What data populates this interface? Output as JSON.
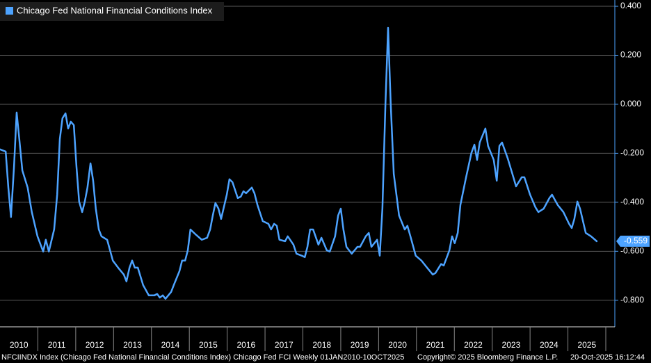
{
  "chart_data": {
    "type": "line",
    "series": [
      {
        "name": "Chicago Fed National Financial Conditions Index",
        "color": "#4da3ff",
        "values": [
          -0.184,
          -0.193,
          -0.34,
          -0.46,
          -0.255,
          -0.034,
          -0.142,
          -0.27,
          -0.34,
          -0.44,
          -0.539,
          -0.601,
          -0.553,
          -0.601,
          -0.511,
          -0.369,
          -0.142,
          -0.057,
          -0.037,
          -0.099,
          -0.071,
          -0.085,
          -0.255,
          -0.397,
          -0.44,
          -0.397,
          -0.34,
          -0.241,
          -0.312,
          -0.426,
          -0.511,
          -0.539,
          -0.553,
          -0.638,
          -0.667,
          -0.695,
          -0.723,
          -0.667,
          -0.638,
          -0.667,
          -0.667,
          -0.738,
          -0.78,
          -0.78,
          -0.774,
          -0.789,
          -0.78,
          -0.794,
          -0.766,
          -0.738,
          -0.681,
          -0.638,
          -0.638,
          -0.596,
          -0.511,
          -0.533,
          -0.553,
          -0.545,
          -0.511,
          -0.454,
          -0.403,
          -0.426,
          -0.468,
          -0.369,
          -0.306,
          -0.318,
          -0.383,
          -0.377,
          -0.355,
          -0.363,
          -0.34,
          -0.363,
          -0.411,
          -0.477,
          -0.488,
          -0.511,
          -0.488,
          -0.496,
          -0.553,
          -0.559,
          -0.539,
          -0.573,
          -0.61,
          -0.618,
          -0.624,
          -0.582,
          -0.511,
          -0.511,
          -0.573,
          -0.545,
          -0.596,
          -0.601,
          -0.539,
          -0.454,
          -0.426,
          -0.511,
          -0.582,
          -0.61,
          -0.582,
          -0.582,
          -0.539,
          -0.525,
          -0.582,
          -0.553,
          -0.618,
          -0.426,
          0.0,
          0.312,
          0.0,
          -0.284,
          -0.454,
          -0.511,
          -0.496,
          -0.539,
          -0.618,
          -0.638,
          -0.667,
          -0.695,
          -0.689,
          -0.652,
          -0.658,
          -0.596,
          -0.539,
          -0.567,
          -0.525,
          -0.411,
          -0.298,
          -0.199,
          -0.165,
          -0.227,
          -0.156,
          -0.099,
          -0.17,
          -0.227,
          -0.312,
          -0.17,
          -0.156,
          -0.221,
          -0.298,
          -0.335,
          -0.298,
          -0.298,
          -0.369,
          -0.42,
          -0.44,
          -0.426,
          -0.383,
          -0.369,
          -0.411,
          -0.44,
          -0.488,
          -0.505,
          -0.468,
          -0.397,
          -0.426,
          -0.525,
          -0.539,
          -0.559
        ]
      }
    ],
    "x": [
      2010.0,
      2010.15,
      2010.22,
      2010.29,
      2010.37,
      2010.44,
      2010.51,
      2010.59,
      2010.73,
      2010.84,
      2010.99,
      2011.14,
      2011.21,
      2011.29,
      2011.43,
      2011.51,
      2011.58,
      2011.65,
      2011.73,
      2011.8,
      2011.87,
      2011.95,
      2012.02,
      2012.09,
      2012.17,
      2012.24,
      2012.31,
      2012.39,
      2012.46,
      2012.53,
      2012.61,
      2012.68,
      2012.83,
      2012.98,
      2013.12,
      2013.27,
      2013.34,
      2013.42,
      2013.49,
      2013.56,
      2013.64,
      2013.78,
      2013.93,
      2014.08,
      2014.15,
      2014.22,
      2014.3,
      2014.37,
      2014.52,
      2014.59,
      2014.74,
      2014.81,
      2014.89,
      2014.96,
      2015.03,
      2015.18,
      2015.33,
      2015.47,
      2015.55,
      2015.62,
      2015.69,
      2015.77,
      2015.84,
      2015.99,
      2016.06,
      2016.14,
      2016.28,
      2016.36,
      2016.43,
      2016.5,
      2016.65,
      2016.72,
      2016.8,
      2016.94,
      2017.09,
      2017.16,
      2017.24,
      2017.31,
      2017.38,
      2017.53,
      2017.6,
      2017.75,
      2017.83,
      2017.97,
      2018.05,
      2018.12,
      2018.19,
      2018.27,
      2018.41,
      2018.49,
      2018.63,
      2018.71,
      2018.85,
      2018.93,
      2019.0,
      2019.07,
      2019.15,
      2019.29,
      2019.44,
      2019.51,
      2019.66,
      2019.74,
      2019.81,
      2019.96,
      2020.03,
      2020.1,
      2020.18,
      2020.25,
      2020.32,
      2020.4,
      2020.54,
      2020.69,
      2020.76,
      2020.84,
      2020.98,
      2021.13,
      2021.28,
      2021.43,
      2021.5,
      2021.65,
      2021.72,
      2021.87,
      2021.94,
      2022.01,
      2022.09,
      2022.16,
      2022.31,
      2022.45,
      2022.53,
      2022.6,
      2022.67,
      2022.82,
      2022.89,
      2023.04,
      2023.12,
      2023.19,
      2023.26,
      2023.41,
      2023.56,
      2023.63,
      2023.78,
      2023.85,
      2024.0,
      2024.14,
      2024.22,
      2024.36,
      2024.51,
      2024.58,
      2024.73,
      2024.88,
      2025.03,
      2025.1,
      2025.17,
      2025.25,
      2025.32,
      2025.47,
      2025.61,
      2025.76
    ],
    "xlim": [
      2010,
      2026
    ],
    "xticks": [
      {
        "value": 2010.5,
        "label": "2010"
      },
      {
        "value": 2011.5,
        "label": "2011"
      },
      {
        "value": 2012.5,
        "label": "2012"
      },
      {
        "value": 2013.5,
        "label": "2013"
      },
      {
        "value": 2014.5,
        "label": "2014"
      },
      {
        "value": 2015.5,
        "label": "2015"
      },
      {
        "value": 2016.5,
        "label": "2016"
      },
      {
        "value": 2017.5,
        "label": "2017"
      },
      {
        "value": 2018.5,
        "label": "2018"
      },
      {
        "value": 2019.5,
        "label": "2019"
      },
      {
        "value": 2020.5,
        "label": "2020"
      },
      {
        "value": 2021.5,
        "label": "2021"
      },
      {
        "value": 2022.5,
        "label": "2022"
      },
      {
        "value": 2023.5,
        "label": "2023"
      },
      {
        "value": 2024.5,
        "label": "2024"
      },
      {
        "value": 2025.5,
        "label": "2025"
      }
    ],
    "year_separators": [
      2011,
      2012,
      2013,
      2014,
      2015,
      2016,
      2017,
      2018,
      2019,
      2020,
      2021,
      2022,
      2023,
      2024,
      2025,
      2026
    ],
    "ylim": [
      -0.9,
      0.42
    ],
    "yticks": [
      {
        "value": -0.8,
        "label": "-0.800"
      },
      {
        "value": -0.6,
        "label": "-0.600"
      },
      {
        "value": -0.4,
        "label": "-0.400"
      },
      {
        "value": -0.2,
        "label": "-0.200"
      },
      {
        "value": 0,
        "label": "0.000"
      },
      {
        "value": 0.2,
        "label": "0.200"
      },
      {
        "value": 0.4,
        "label": "0.400"
      }
    ],
    "grid": true,
    "legend": "top-left",
    "last_value": -0.559,
    "footer": {
      "source": "NFCIINDX Index (Chicago Fed National Financial Conditions Index) Chicago Fed FCI Weekly 01JAN2010-10OCT2025",
      "copyright": "Copyright© 2025 Bloomberg Finance L.P.",
      "timestamp": "20-Oct-2025 16:12:44"
    }
  }
}
